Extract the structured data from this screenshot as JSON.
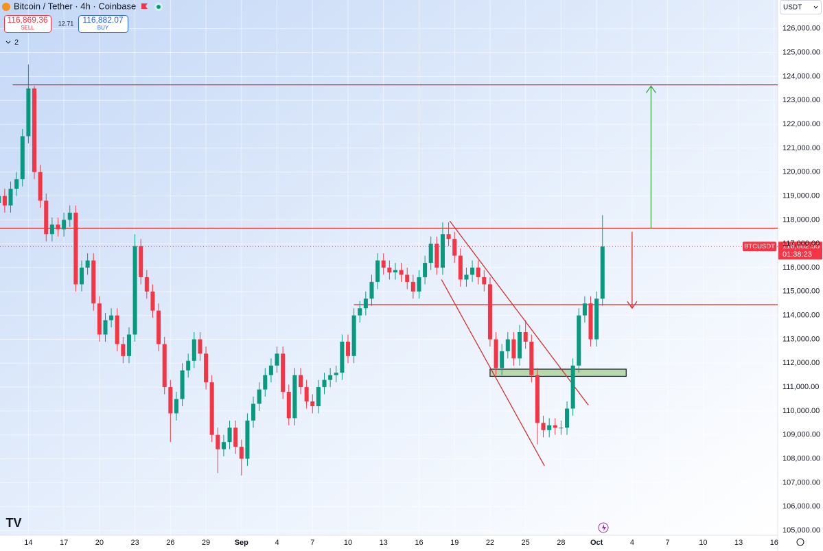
{
  "chart_data": {
    "type": "candlestick",
    "title": "Bitcoin / Tether · 4h · Coinbase",
    "quote": {
      "sell_price": "116,869.36",
      "sell_label": "SELL",
      "spread": "12.71",
      "buy_price": "116,882.07",
      "buy_label": "BUY"
    },
    "indicators_count": 2,
    "currency": "USDT",
    "symbol_tag": "BTCUSDT",
    "last_price": {
      "value": 116882.55,
      "label": "116,882.55"
    },
    "countdown": "01:38:23",
    "up_color": "#089981",
    "down_color": "#f23645",
    "x": [
      -2.5,
      -2,
      -1.5,
      -1,
      -0.5,
      0,
      0.5,
      1,
      1.5,
      2,
      2.5,
      3,
      3.5,
      4,
      4.5,
      5,
      5.5,
      6,
      6.5,
      7,
      7.5,
      8,
      8.5,
      9,
      9.5,
      10,
      10.5,
      11,
      11.5,
      12,
      12.5,
      13,
      13.5,
      14,
      14.5,
      15,
      15.5,
      16,
      16.5,
      17,
      17.5,
      18,
      18.5,
      19,
      19.5,
      20,
      20.5,
      21,
      21.5,
      22,
      22.5,
      23,
      23.5,
      24,
      24.5,
      25,
      25.5,
      26,
      26.5,
      27,
      27.5,
      28,
      28.5,
      29,
      29.5,
      30,
      30.5,
      31,
      31.5,
      32,
      32.5,
      33,
      33.5,
      34,
      34.5,
      35,
      35.5,
      36,
      36.5,
      37,
      37.5,
      38,
      38.5,
      39,
      39.5,
      40,
      40.5,
      41,
      41.5,
      42,
      42.5,
      43,
      43.5,
      44,
      44.5,
      45,
      45.5,
      46,
      46.5,
      47,
      47.5,
      48,
      48.5
    ],
    "open": [
      118700,
      119000,
      118600,
      119300,
      119700,
      121500,
      123500,
      120000,
      118800,
      117400,
      117800,
      117600,
      118000,
      118300,
      115300,
      116000,
      116300,
      114500,
      113200,
      113800,
      114000,
      112800,
      112300,
      113200,
      116900,
      115600,
      115000,
      114200,
      112800,
      111000,
      109900,
      110500,
      111700,
      112100,
      113000,
      112400,
      111200,
      109000,
      108400,
      108700,
      109300,
      108500,
      108000,
      109600,
      110300,
      110900,
      111500,
      111900,
      112400,
      110800,
      109700,
      111500,
      111000,
      110400,
      110200,
      111000,
      111300,
      111500,
      111600,
      112900,
      112300,
      114000,
      114300,
      114700,
      115400,
      116300,
      116000,
      115800,
      115900,
      115700,
      115400,
      115000,
      115600,
      116200,
      117000,
      116000,
      117400,
      117200,
      116500,
      115500,
      115700,
      116000,
      115600,
      115300,
      113000,
      111800,
      112500,
      113000,
      112200,
      113300,
      112900,
      111500,
      109500,
      109200,
      109400,
      109300,
      109300,
      110100,
      111900,
      114000,
      114500,
      113000,
      114700
    ],
    "high": [
      119300,
      119300,
      119600,
      120000,
      121800,
      124500,
      123600,
      120300,
      119100,
      118100,
      118100,
      118300,
      118600,
      118600,
      116300,
      116600,
      116600,
      114800,
      114100,
      114300,
      114300,
      113100,
      113500,
      117400,
      117200,
      115900,
      115300,
      114500,
      113100,
      111300,
      110800,
      112000,
      112400,
      113300,
      113300,
      112700,
      111500,
      109300,
      109000,
      109600,
      109600,
      108800,
      109900,
      110600,
      111200,
      111800,
      112200,
      112700,
      112700,
      111100,
      111800,
      111800,
      111300,
      110700,
      111300,
      111600,
      111800,
      111900,
      113200,
      113200,
      114300,
      114600,
      115000,
      115700,
      116600,
      116600,
      116300,
      116200,
      116200,
      116000,
      115700,
      115900,
      116500,
      117300,
      117300,
      117900,
      117900,
      117500,
      116800,
      116000,
      116300,
      116300,
      115900,
      115600,
      113300,
      112800,
      113300,
      113300,
      113600,
      113800,
      113200,
      111800,
      109800,
      109700,
      109700,
      109600,
      110400,
      112200,
      114300,
      114800,
      114800,
      115000,
      118200
    ],
    "low": [
      118400,
      118300,
      118300,
      119000,
      119400,
      121200,
      119700,
      118500,
      117100,
      117100,
      117300,
      117300,
      117700,
      115000,
      115000,
      115700,
      114200,
      112900,
      112900,
      113500,
      112500,
      112000,
      112000,
      112900,
      115300,
      114700,
      113900,
      112500,
      110700,
      108700,
      109600,
      110200,
      111400,
      111800,
      112100,
      110900,
      108700,
      107400,
      108100,
      108400,
      108200,
      107300,
      107700,
      109300,
      110000,
      110600,
      111200,
      111600,
      110500,
      109400,
      109400,
      110700,
      110100,
      109900,
      109900,
      110700,
      111000,
      111200,
      111300,
      112000,
      112000,
      113700,
      114000,
      114400,
      115100,
      115700,
      115500,
      115500,
      115400,
      115100,
      114700,
      114700,
      115300,
      115900,
      115700,
      115700,
      116900,
      116200,
      115200,
      115200,
      115400,
      115300,
      115000,
      112700,
      111500,
      111500,
      112200,
      111900,
      111900,
      112600,
      111200,
      108600,
      108900,
      108900,
      109000,
      109000,
      109000,
      109800,
      111600,
      113700,
      112700,
      112700,
      114400
    ],
    "close": [
      119000,
      118600,
      119300,
      119700,
      121500,
      123500,
      120000,
      118800,
      117400,
      117800,
      117600,
      118000,
      118300,
      115300,
      116000,
      116300,
      114500,
      113200,
      113800,
      114000,
      112800,
      112300,
      113200,
      116900,
      115600,
      115000,
      114200,
      112800,
      111000,
      109900,
      110500,
      111700,
      112100,
      113000,
      112400,
      111200,
      109000,
      108400,
      108700,
      109300,
      108500,
      108000,
      109600,
      110300,
      110900,
      111500,
      111900,
      112400,
      110800,
      109700,
      111500,
      111000,
      110400,
      110200,
      111000,
      111300,
      111500,
      111600,
      112900,
      112300,
      114000,
      114300,
      114700,
      115400,
      116300,
      116000,
      115800,
      115900,
      115700,
      115400,
      115000,
      115600,
      116200,
      117000,
      116000,
      117400,
      117200,
      116500,
      115500,
      115700,
      116000,
      115600,
      115300,
      113000,
      111800,
      112500,
      113000,
      112200,
      113300,
      112900,
      111500,
      109500,
      109200,
      109400,
      109300,
      109300,
      110100,
      111900,
      114000,
      114500,
      113000,
      114700,
      116882
    ],
    "xlim": [
      -2.4,
      63.3
    ],
    "ylim": [
      104800,
      127200
    ],
    "xticks": [
      {
        "value": 0,
        "label": "14"
      },
      {
        "value": 3,
        "label": "17"
      },
      {
        "value": 6,
        "label": "20"
      },
      {
        "value": 9,
        "label": "23"
      },
      {
        "value": 12,
        "label": "26"
      },
      {
        "value": 15,
        "label": "29"
      },
      {
        "value": 18,
        "label": "Sep"
      },
      {
        "value": 21,
        "label": "4"
      },
      {
        "value": 24,
        "label": "7"
      },
      {
        "value": 27,
        "label": "10"
      },
      {
        "value": 30,
        "label": "13"
      },
      {
        "value": 33,
        "label": "16"
      },
      {
        "value": 36,
        "label": "19"
      },
      {
        "value": 39,
        "label": "22"
      },
      {
        "value": 42,
        "label": "25"
      },
      {
        "value": 45,
        "label": "28"
      },
      {
        "value": 48,
        "label": "Oct"
      },
      {
        "value": 51,
        "label": "4"
      },
      {
        "value": 54,
        "label": "7"
      },
      {
        "value": 57,
        "label": "10"
      },
      {
        "value": 60,
        "label": "13"
      },
      {
        "value": 63,
        "label": "16"
      }
    ],
    "yticks": [
      {
        "value": 105000,
        "label": "105,000.00"
      },
      {
        "value": 106000,
        "label": "106,000.00"
      },
      {
        "value": 107000,
        "label": "107,000.00"
      },
      {
        "value": 108000,
        "label": "108,000.00"
      },
      {
        "value": 109000,
        "label": "109,000.00"
      },
      {
        "value": 110000,
        "label": "110,000.00"
      },
      {
        "value": 111000,
        "label": "111,000.00"
      },
      {
        "value": 112000,
        "label": "112,000.00"
      },
      {
        "value": 113000,
        "label": "113,000.00"
      },
      {
        "value": 114000,
        "label": "114,000.00"
      },
      {
        "value": 115000,
        "label": "115,000.00"
      },
      {
        "value": 116000,
        "label": "116,000.00"
      },
      {
        "value": 117000,
        "label": "117,000.00"
      },
      {
        "value": 118000,
        "label": "118,000.00"
      },
      {
        "value": 119000,
        "label": "119,000.00"
      },
      {
        "value": 120000,
        "label": "120,000.00"
      },
      {
        "value": 121000,
        "label": "121,000.00"
      },
      {
        "value": 122000,
        "label": "122,000.00"
      },
      {
        "value": 123000,
        "label": "123,000.00"
      },
      {
        "value": 124000,
        "label": "124,000.00"
      },
      {
        "value": 125000,
        "label": "125,000.00"
      },
      {
        "value": 126000,
        "label": "126,000.00"
      }
    ],
    "grid": true,
    "drawings": {
      "levels": [
        {
          "price": 123650,
          "start": -1.33,
          "color": "#d32f2f"
        },
        {
          "price": 117650,
          "start": -2.4,
          "color": "#d32f2f"
        },
        {
          "price": 114450,
          "start": 27.5,
          "color": "#d32f2f"
        }
      ],
      "trendlines": [
        {
          "x": [
            35.6,
            47.3
          ],
          "y": [
            117950,
            110250
          ],
          "color": "#d32f2f"
        },
        {
          "x": [
            34.9,
            43.6
          ],
          "y": [
            115500,
            107700
          ],
          "color": "#d32f2f"
        }
      ],
      "zones": [
        {
          "x": [
            39.0,
            50.5
          ],
          "y": [
            111750,
            111450
          ],
          "color": "#b7d9ad"
        }
      ],
      "arrows": [
        {
          "x": 52.6,
          "y": [
            117650,
            123600
          ],
          "color": "#43a047"
        },
        {
          "x": 51.0,
          "y": [
            117500,
            114300
          ],
          "color": "#d32f2f"
        }
      ]
    }
  }
}
